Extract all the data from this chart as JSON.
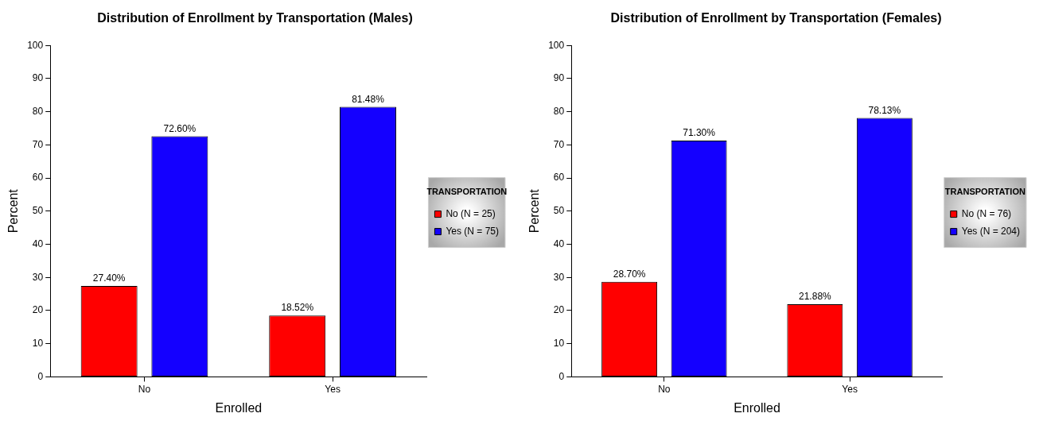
{
  "chart_data": [
    {
      "type": "bar",
      "title": "Distribution of Enrollment by Transportation (Males)",
      "xlabel": "Enrolled",
      "ylabel": "Percent",
      "legend_title": "TRANSPORTATION",
      "categories": [
        "No",
        "Yes"
      ],
      "series": [
        {
          "name": "No (N = 25)",
          "color": "#ff0000",
          "values": [
            27.4,
            18.52
          ]
        },
        {
          "name": "Yes (N = 75)",
          "color": "#1400ff",
          "values": [
            72.6,
            81.48
          ]
        }
      ],
      "ylim": [
        0,
        100
      ],
      "yticks": [
        0,
        10,
        20,
        30,
        40,
        50,
        60,
        70,
        80,
        90,
        100
      ],
      "grid": false,
      "legend": "right",
      "value_labels": [
        [
          "27.40%",
          "18.52%"
        ],
        [
          "72.60%",
          "81.48%"
        ]
      ]
    },
    {
      "type": "bar",
      "title": "Distribution of Enrollment by Transportation (Females)",
      "xlabel": "Enrolled",
      "ylabel": "Percent",
      "legend_title": "TRANSPORTATION",
      "categories": [
        "No",
        "Yes"
      ],
      "series": [
        {
          "name": "No (N = 76)",
          "color": "#ff0000",
          "values": [
            28.7,
            21.88
          ]
        },
        {
          "name": "Yes (N = 204)",
          "color": "#1400ff",
          "values": [
            71.3,
            78.13
          ]
        }
      ],
      "ylim": [
        0,
        100
      ],
      "yticks": [
        0,
        10,
        20,
        30,
        40,
        50,
        60,
        70,
        80,
        90,
        100
      ],
      "grid": false,
      "legend": "right",
      "value_labels": [
        [
          "28.70%",
          "21.88%"
        ],
        [
          "71.30%",
          "78.13%"
        ]
      ]
    }
  ]
}
